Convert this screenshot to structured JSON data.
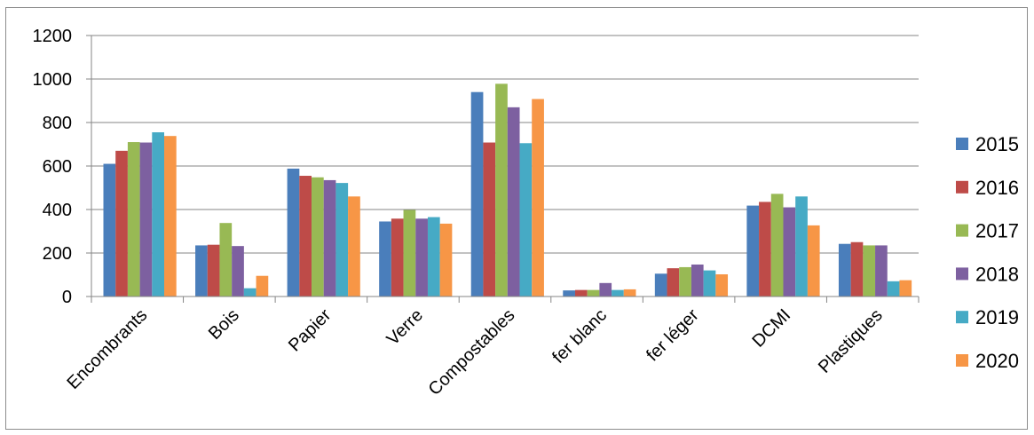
{
  "chart_data": {
    "type": "bar",
    "title": "",
    "xlabel": "",
    "ylabel": "",
    "ylim": [
      0,
      1200
    ],
    "yticks": [
      0,
      200,
      400,
      600,
      800,
      1000,
      1200
    ],
    "grid": true,
    "legend_position": "right",
    "categories": [
      "Encombrants",
      "Bois",
      "Papier",
      "Verre",
      "Compostables",
      "fer blanc",
      "fer léger",
      "DCMI",
      "Plastiques"
    ],
    "series": [
      {
        "name": "2015",
        "color": "#4a7ebb",
        "values": [
          610,
          235,
          588,
          345,
          940,
          28,
          105,
          418,
          242
        ]
      },
      {
        "name": "2016",
        "color": "#be4b48",
        "values": [
          670,
          238,
          555,
          358,
          708,
          30,
          130,
          435,
          250
        ]
      },
      {
        "name": "2017",
        "color": "#98b954",
        "values": [
          710,
          338,
          548,
          398,
          978,
          30,
          135,
          472,
          235
        ]
      },
      {
        "name": "2018",
        "color": "#7d60a0",
        "values": [
          708,
          232,
          535,
          358,
          870,
          62,
          147,
          410,
          235
        ]
      },
      {
        "name": "2019",
        "color": "#46aac5",
        "values": [
          755,
          38,
          522,
          365,
          705,
          30,
          120,
          460,
          70
        ]
      },
      {
        "name": "2020",
        "color": "#f79646",
        "values": [
          738,
          95,
          460,
          335,
          908,
          33,
          102,
          327,
          75
        ]
      }
    ]
  }
}
